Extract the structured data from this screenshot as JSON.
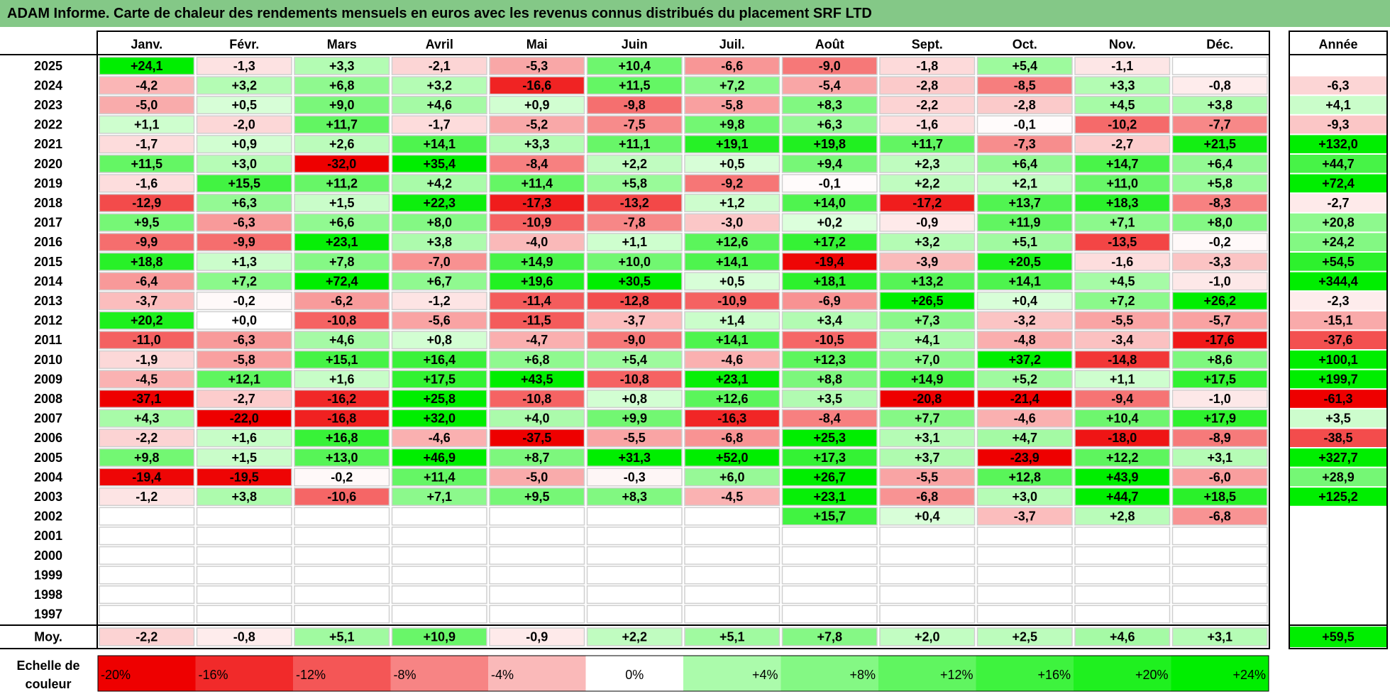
{
  "title": "ADAM Informe. Carte de chaleur des rendements mensuels en euros avec les revenus connus distribués du placement SRF LTD",
  "chart_data": {
    "type": "heatmap",
    "title": "ADAM Informe. Carte de chaleur des rendements mensuels en euros avec les revenus connus distribués du placement SRF LTD",
    "months": [
      "Janv.",
      "Févr.",
      "Mars",
      "Avril",
      "Mai",
      "Juin",
      "Juil.",
      "Août",
      "Sept.",
      "Oct.",
      "Nov.",
      "Déc."
    ],
    "year_header": "Année",
    "average_label": "Moy.",
    "scale_label": "Echelle de couleur",
    "rows": [
      {
        "year": "2025",
        "values": [
          "+24,1",
          "-1,3",
          "+3,3",
          "-2,1",
          "-5,3",
          "+10,4",
          "-6,6",
          "-9,0",
          "-1,8",
          "+5,4",
          "-1,1",
          ""
        ],
        "annual": ""
      },
      {
        "year": "2024",
        "values": [
          "-4,2",
          "+3,2",
          "+6,8",
          "+3,2",
          "-16,6",
          "+11,5",
          "+7,2",
          "-5,4",
          "-2,8",
          "-8,5",
          "+3,3",
          "-0,8"
        ],
        "annual": "-6,3"
      },
      {
        "year": "2023",
        "values": [
          "-5,0",
          "+0,5",
          "+9,0",
          "+4,6",
          "+0,9",
          "-9,8",
          "-5,8",
          "+8,3",
          "-2,2",
          "-2,8",
          "+4,5",
          "+3,8"
        ],
        "annual": "+4,1"
      },
      {
        "year": "2022",
        "values": [
          "+1,1",
          "-2,0",
          "+11,7",
          "-1,7",
          "-5,2",
          "-7,5",
          "+9,8",
          "+6,3",
          "-1,6",
          "-0,1",
          "-10,2",
          "-7,7"
        ],
        "annual": "-9,3"
      },
      {
        "year": "2021",
        "values": [
          "-1,7",
          "+0,9",
          "+2,6",
          "+14,1",
          "+3,3",
          "+11,1",
          "+19,1",
          "+19,8",
          "+11,7",
          "-7,3",
          "-2,7",
          "+21,5"
        ],
        "annual": "+132,0"
      },
      {
        "year": "2020",
        "values": [
          "+11,5",
          "+3,0",
          "-32,0",
          "+35,4",
          "-8,4",
          "+2,2",
          "+0,5",
          "+9,4",
          "+2,3",
          "+6,4",
          "+14,7",
          "+6,4"
        ],
        "annual": "+44,7"
      },
      {
        "year": "2019",
        "values": [
          "-1,6",
          "+15,5",
          "+11,2",
          "+4,2",
          "+11,4",
          "+5,8",
          "-9,2",
          "-0,1",
          "+2,2",
          "+2,1",
          "+11,0",
          "+5,8"
        ],
        "annual": "+72,4"
      },
      {
        "year": "2018",
        "values": [
          "-12,9",
          "+6,3",
          "+1,5",
          "+22,3",
          "-17,3",
          "-13,2",
          "+1,2",
          "+14,0",
          "-17,2",
          "+13,7",
          "+18,3",
          "-8,3"
        ],
        "annual": "-2,7"
      },
      {
        "year": "2017",
        "values": [
          "+9,5",
          "-6,3",
          "+6,6",
          "+8,0",
          "-10,9",
          "-7,8",
          "-3,0",
          "+0,2",
          "-0,9",
          "+11,9",
          "+7,1",
          "+8,0"
        ],
        "annual": "+20,8"
      },
      {
        "year": "2016",
        "values": [
          "-9,9",
          "-9,9",
          "+23,1",
          "+3,8",
          "-4,0",
          "+1,1",
          "+12,6",
          "+17,2",
          "+3,2",
          "+5,1",
          "-13,5",
          "-0,2"
        ],
        "annual": "+24,2"
      },
      {
        "year": "2015",
        "values": [
          "+18,8",
          "+1,3",
          "+7,8",
          "-7,0",
          "+14,9",
          "+10,0",
          "+14,1",
          "-19,4",
          "-3,9",
          "+20,5",
          "-1,6",
          "-3,3"
        ],
        "annual": "+54,5"
      },
      {
        "year": "2014",
        "values": [
          "-6,4",
          "+7,2",
          "+72,4",
          "+6,7",
          "+19,6",
          "+30,5",
          "+0,5",
          "+18,1",
          "+13,2",
          "+14,1",
          "+4,5",
          "-1,0"
        ],
        "annual": "+344,4"
      },
      {
        "year": "2013",
        "values": [
          "-3,7",
          "-0,2",
          "-6,2",
          "-1,2",
          "-11,4",
          "-12,8",
          "-10,9",
          "-6,9",
          "+26,5",
          "+0,4",
          "+7,2",
          "+26,2"
        ],
        "annual": "-2,3"
      },
      {
        "year": "2012",
        "values": [
          "+20,2",
          "+0,0",
          "-10,8",
          "-5,6",
          "-11,5",
          "-3,7",
          "+1,4",
          "+3,4",
          "+7,3",
          "-3,2",
          "-5,5",
          "-5,7"
        ],
        "annual": "-15,1"
      },
      {
        "year": "2011",
        "values": [
          "-11,0",
          "-6,3",
          "+4,6",
          "+0,8",
          "-4,7",
          "-9,0",
          "+14,1",
          "-10,5",
          "+4,1",
          "-4,8",
          "-3,4",
          "-17,6"
        ],
        "annual": "-37,6"
      },
      {
        "year": "2010",
        "values": [
          "-1,9",
          "-5,8",
          "+15,1",
          "+16,4",
          "+6,8",
          "+5,4",
          "-4,6",
          "+12,3",
          "+7,0",
          "+37,2",
          "-14,8",
          "+8,6"
        ],
        "annual": "+100,1"
      },
      {
        "year": "2009",
        "values": [
          "-4,5",
          "+12,1",
          "+1,6",
          "+17,5",
          "+43,5",
          "-10,8",
          "+23,1",
          "+8,8",
          "+14,9",
          "+5,2",
          "+1,1",
          "+17,5"
        ],
        "annual": "+199,7"
      },
      {
        "year": "2008",
        "values": [
          "-37,1",
          "-2,7",
          "-16,2",
          "+25,8",
          "-10,8",
          "+0,8",
          "+12,6",
          "+3,5",
          "-20,8",
          "-21,4",
          "-9,4",
          "-1,0"
        ],
        "annual": "-61,3"
      },
      {
        "year": "2007",
        "values": [
          "+4,3",
          "-22,0",
          "-16,8",
          "+32,0",
          "+4,0",
          "+9,9",
          "-16,3",
          "-8,4",
          "+7,7",
          "-4,6",
          "+10,4",
          "+17,9"
        ],
        "annual": "+3,5"
      },
      {
        "year": "2006",
        "values": [
          "-2,2",
          "+1,6",
          "+16,8",
          "-4,6",
          "-37,5",
          "-5,5",
          "-6,8",
          "+25,3",
          "+3,1",
          "+4,7",
          "-18,0",
          "-8,9"
        ],
        "annual": "-38,5"
      },
      {
        "year": "2005",
        "values": [
          "+9,8",
          "+1,5",
          "+13,0",
          "+46,9",
          "+8,7",
          "+31,3",
          "+52,0",
          "+17,3",
          "+3,7",
          "-23,9",
          "+12,2",
          "+3,1"
        ],
        "annual": "+327,7"
      },
      {
        "year": "2004",
        "values": [
          "-19,4",
          "-19,5",
          "-0,2",
          "+11,4",
          "-5,0",
          "-0,3",
          "+6,0",
          "+26,7",
          "-5,5",
          "+12,8",
          "+43,9",
          "-6,0"
        ],
        "annual": "+28,9"
      },
      {
        "year": "2003",
        "values": [
          "-1,2",
          "+3,8",
          "-10,6",
          "+7,1",
          "+9,5",
          "+8,3",
          "-4,5",
          "+23,1",
          "-6,8",
          "+3,0",
          "+44,7",
          "+18,5"
        ],
        "annual": "+125,2"
      },
      {
        "year": "2002",
        "values": [
          "",
          "",
          "",
          "",
          "",
          "",
          "",
          "+15,7",
          "+0,4",
          "-3,7",
          "+2,8",
          "-6,8"
        ],
        "annual": ""
      },
      {
        "year": "2001",
        "values": [
          "",
          "",
          "",
          "",
          "",
          "",
          "",
          "",
          "",
          "",
          "",
          ""
        ],
        "annual": ""
      },
      {
        "year": "2000",
        "values": [
          "",
          "",
          "",
          "",
          "",
          "",
          "",
          "",
          "",
          "",
          "",
          ""
        ],
        "annual": ""
      },
      {
        "year": "1999",
        "values": [
          "",
          "",
          "",
          "",
          "",
          "",
          "",
          "",
          "",
          "",
          "",
          ""
        ],
        "annual": ""
      },
      {
        "year": "1998",
        "values": [
          "",
          "",
          "",
          "",
          "",
          "",
          "",
          "",
          "",
          "",
          "",
          ""
        ],
        "annual": ""
      },
      {
        "year": "1997",
        "values": [
          "",
          "",
          "",
          "",
          "",
          "",
          "",
          "",
          "",
          "",
          "",
          ""
        ],
        "annual": ""
      }
    ],
    "averages": [
      "-2,2",
      "-0,8",
      "+5,1",
      "+10,9",
      "-0,9",
      "+2,2",
      "+5,1",
      "+7,8",
      "+2,0",
      "+2,5",
      "+4,6",
      "+3,1"
    ],
    "average_annual": "+59,5",
    "scale": [
      "-20%",
      "-16%",
      "-12%",
      "-8%",
      "-4%",
      "0%",
      "+4%",
      "+8%",
      "+12%",
      "+16%",
      "+20%",
      "+24%"
    ]
  }
}
